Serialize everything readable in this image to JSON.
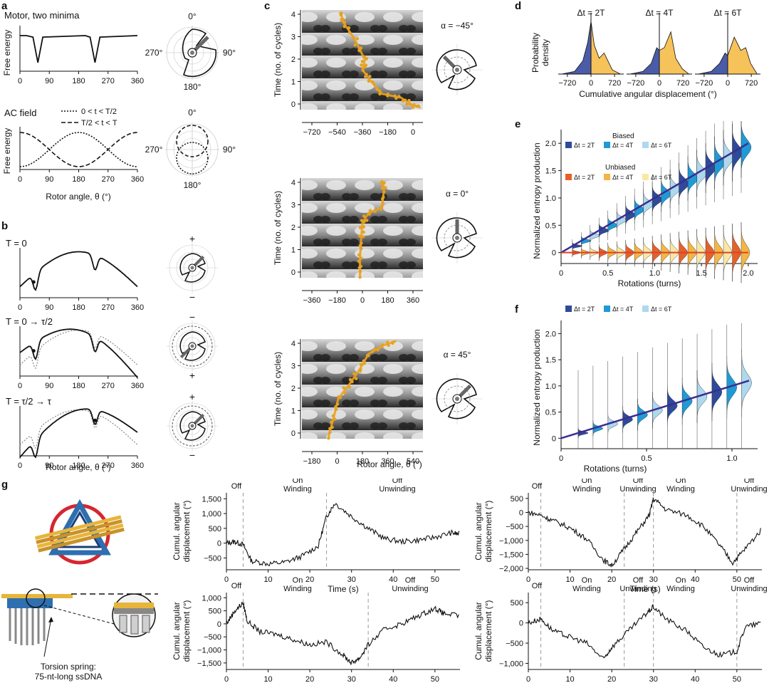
{
  "panels": {
    "a": {
      "letter": "a",
      "top_title": "Motor, two minima",
      "bottom_title": "AC field",
      "ylabel": "Free energy",
      "xlabel": "Rotor angle, θ (°)",
      "legend": [
        "0 < t < T/2",
        "T/2 < t < T"
      ],
      "xticks": [
        "0",
        "90",
        "180",
        "270",
        "360"
      ],
      "polar_labels": {
        "top": "0°",
        "right": "90°",
        "bottom": "180°",
        "left": "270°"
      }
    },
    "b": {
      "letter": "b",
      "rows": [
        "T = 0",
        "T = 0 → τ/2",
        "T = τ/2 → τ"
      ],
      "xlabel": "Rotor angle, θ (°)",
      "xticks": [
        "0",
        "90",
        "180",
        "270",
        "360"
      ],
      "plus": "+",
      "minus": "−"
    },
    "c": {
      "letter": "c",
      "ylabel": "Time (no. of cycles)",
      "xlabel": "Rotor angle, θ (°)",
      "yticks": [
        "0",
        "1",
        "2",
        "3",
        "4"
      ],
      "maps": [
        {
          "alpha": "α = −45°",
          "xticks": [
            "−720",
            "−540",
            "−360",
            "−180",
            "0"
          ]
        },
        {
          "alpha": "α = 0°",
          "xticks": [
            "−360",
            "−180",
            "0",
            "180",
            "360"
          ]
        },
        {
          "alpha": "α = 45°",
          "xticks": [
            "−180",
            "0",
            "180",
            "360",
            "540"
          ]
        }
      ]
    },
    "d": {
      "letter": "d",
      "ylabel_1": "Probability",
      "ylabel_2": "density",
      "xlabel": "Cumulative angular displacement (°)",
      "titles": [
        "Δt = 2T",
        "Δt = 4T",
        "Δt = 6T"
      ],
      "xticks": [
        "−720",
        "0",
        "720"
      ]
    },
    "e": {
      "letter": "e",
      "ylabel": "Normalized entropy production",
      "xlabel": "Rotations (turns)",
      "legend_biased": "Biased",
      "legend_unbiased": "Unbiased",
      "legend_items": [
        "Δt = 2T",
        "Δt = 4T",
        "Δt = 6T"
      ],
      "xticks": [
        "0",
        "0.5",
        "1.0",
        "1.5",
        "2.0"
      ],
      "yticks": [
        "0",
        "0.5",
        "1.0",
        "1.5",
        "2.0"
      ]
    },
    "f": {
      "letter": "f",
      "ylabel": "Normalized entropy production",
      "xlabel": "Rotations (turns)",
      "legend_items": [
        "Δt = 2T",
        "Δt = 4T",
        "Δt = 6T"
      ],
      "xticks": [
        "0",
        "0.5",
        "1.0"
      ],
      "yticks": [
        "0",
        "0.5",
        "1.0",
        "1.5",
        "2.0"
      ]
    },
    "g": {
      "letter": "g",
      "spring_label_1": "Torsion spring:",
      "spring_label_2": "75-nt-long ssDNA",
      "ylabel_1": "Cumul. angular",
      "ylabel_2": "displacement (°)",
      "xlabel": "Time (s)",
      "xticks": [
        "0",
        "10",
        "20",
        "30",
        "40",
        "50"
      ],
      "traces": [
        {
          "yticks": [
            "1,500",
            "1,000",
            "500",
            "0",
            "−500"
          ],
          "segments": [
            [
              "Off",
              ""
            ],
            [
              "On",
              "Winding"
            ],
            [
              "Off",
              "Unwinding"
            ]
          ]
        },
        {
          "yticks": [
            "500",
            "0",
            "−500",
            "−1,000",
            "−1,500",
            "−2,000"
          ],
          "segments": [
            [
              "Off",
              ""
            ],
            [
              "On",
              "Winding"
            ],
            [
              "Off",
              "Unwinding"
            ],
            [
              "On",
              "Winding"
            ],
            [
              "Off",
              "Unwinding"
            ]
          ]
        },
        {
          "yticks": [
            "1,000",
            "500",
            "0",
            "−500",
            "−1,000",
            "−1,500"
          ],
          "segments": [
            [
              "Off",
              ""
            ],
            [
              "On",
              "Winding"
            ],
            [
              "Off",
              "Unwinding"
            ]
          ]
        },
        {
          "yticks": [
            "500",
            "0",
            "−500",
            "−1,000"
          ],
          "segments": [
            [
              "Off",
              ""
            ],
            [
              "On",
              "Winding"
            ],
            [
              "Off",
              "Unwinding"
            ],
            [
              "On",
              "Winding"
            ],
            [
              "Off",
              "Unwinding"
            ]
          ]
        }
      ]
    }
  },
  "colors": {
    "biased_2T": "#2e4a9b",
    "biased_4T": "#1f9ad6",
    "biased_6T": "#aed8ee",
    "unbiased_2T": "#e4622a",
    "unbiased_4T": "#f3b544",
    "unbiased_6T": "#f8e8a4",
    "fit_line": "#3b2d8f",
    "fit_line_unbiased": "#e0412a",
    "trajectory": "#e8a21f",
    "density_neg": "#4a5ca8",
    "density_pos": "#f6c25a"
  },
  "chart_data": [
    {
      "type": "line",
      "panel": "a-top",
      "title": "Motor, two minima",
      "xlabel": "Rotor angle, θ (°)",
      "ylabel": "Free energy",
      "xlim": [
        0,
        360
      ],
      "series": [
        {
          "x": [
            0,
            20,
            40,
            55,
            70,
            200,
            215,
            230,
            245,
            360
          ],
          "values": [
            1,
            1,
            0.95,
            0.1,
            0.95,
            1,
            0.95,
            0.1,
            0.95,
            1
          ]
        }
      ]
    },
    {
      "type": "line",
      "panel": "a-bottom",
      "title": "AC field",
      "xlabel": "Rotor angle, θ (°)",
      "ylabel": "Free energy",
      "xlim": [
        0,
        360
      ],
      "series": [
        {
          "name": "0 < t < T/2",
          "x": [
            0,
            90,
            180,
            270,
            360
          ],
          "values": [
            0,
            0.5,
            1,
            0.5,
            0
          ]
        },
        {
          "name": "T/2 < t < T",
          "x": [
            0,
            90,
            180,
            270,
            360
          ],
          "values": [
            1,
            0.5,
            0,
            0.5,
            1
          ]
        }
      ]
    },
    {
      "type": "line",
      "panel": "d",
      "xlabel": "Cumulative angular displacement (°)",
      "ylabel": "Probability density",
      "categories": [
        "Δt = 2T",
        "Δt = 4T",
        "Δt = 6T"
      ],
      "xlim": [
        -1000,
        1000
      ],
      "series": [
        {
          "name": "Δt = 2T",
          "x": [
            -900,
            -500,
            -250,
            -100,
            0,
            100,
            250,
            400,
            650,
            900
          ],
          "values": [
            0,
            0.05,
            0.25,
            0.6,
            1.0,
            0.55,
            0.3,
            0.4,
            0.08,
            0
          ]
        },
        {
          "name": "Δt = 4T",
          "x": [
            -900,
            -500,
            -250,
            -80,
            0,
            150,
            350,
            500,
            700,
            900
          ],
          "values": [
            0,
            0.05,
            0.2,
            0.5,
            0.45,
            0.5,
            0.8,
            0.3,
            0.1,
            0
          ]
        },
        {
          "name": "Δt = 6T",
          "x": [
            -900,
            -500,
            -250,
            -80,
            0,
            200,
            400,
            550,
            700,
            900
          ],
          "values": [
            0,
            0.05,
            0.2,
            0.4,
            0.35,
            0.7,
            0.45,
            0.5,
            0.2,
            0
          ]
        }
      ]
    },
    {
      "type": "line",
      "panel": "e",
      "xlabel": "Rotations (turns)",
      "ylabel": "Normalized entropy production",
      "xlim": [
        0,
        2.1
      ],
      "ylim": [
        -0.2,
        2.25
      ],
      "series": [
        {
          "name": "Biased",
          "x": [
            0,
            2.0
          ],
          "values": [
            0,
            2.0
          ]
        },
        {
          "name": "Unbiased",
          "x": [
            0,
            2.0
          ],
          "values": [
            0,
            0
          ]
        }
      ]
    },
    {
      "type": "line",
      "panel": "f",
      "xlabel": "Rotations (turns)",
      "ylabel": "Normalized entropy production",
      "xlim": [
        0,
        1.15
      ],
      "ylim": [
        -0.2,
        2.25
      ],
      "series": [
        {
          "x": [
            0,
            1.1
          ],
          "values": [
            0,
            1.1
          ]
        }
      ]
    },
    {
      "type": "line",
      "panel": "g",
      "xlabel": "Time (s)",
      "ylabel": "Cumul. angular displacement (°)",
      "xlim": [
        0,
        56
      ],
      "series": [
        {
          "x": [
            0,
            2,
            4,
            6,
            10,
            14,
            18,
            22,
            24,
            26,
            30,
            34,
            38,
            42,
            46,
            50,
            54,
            56
          ],
          "values": [
            0,
            50,
            -50,
            -600,
            -700,
            -650,
            -450,
            -100,
            900,
            1350,
            900,
            500,
            150,
            50,
            100,
            200,
            350,
            300
          ]
        },
        {
          "x": [
            0,
            3,
            6,
            10,
            14,
            18,
            20,
            23,
            26,
            29,
            30,
            33,
            38,
            42,
            46,
            49,
            52,
            56
          ],
          "values": [
            0,
            -100,
            -300,
            -550,
            -950,
            -1700,
            -1900,
            -1300,
            -700,
            -100,
            500,
            100,
            -100,
            -500,
            -1200,
            -1800,
            -1300,
            -600
          ]
        },
        {
          "x": [
            0,
            2,
            4,
            5,
            8,
            12,
            16,
            20,
            24,
            28,
            30,
            32,
            34,
            38,
            42,
            46,
            50,
            52,
            56
          ],
          "values": [
            0,
            500,
            800,
            100,
            -300,
            -400,
            -600,
            -800,
            -700,
            -1200,
            -1500,
            -1300,
            -800,
            -200,
            0,
            300,
            600,
            400,
            300
          ]
        },
        {
          "x": [
            0,
            3,
            6,
            10,
            14,
            18,
            20,
            24,
            28,
            30,
            33,
            38,
            42,
            46,
            50,
            52,
            56
          ],
          "values": [
            0,
            100,
            -200,
            -350,
            -500,
            -900,
            -600,
            -200,
            200,
            400,
            100,
            -200,
            -600,
            -800,
            -700,
            -100,
            0
          ]
        }
      ]
    }
  ]
}
